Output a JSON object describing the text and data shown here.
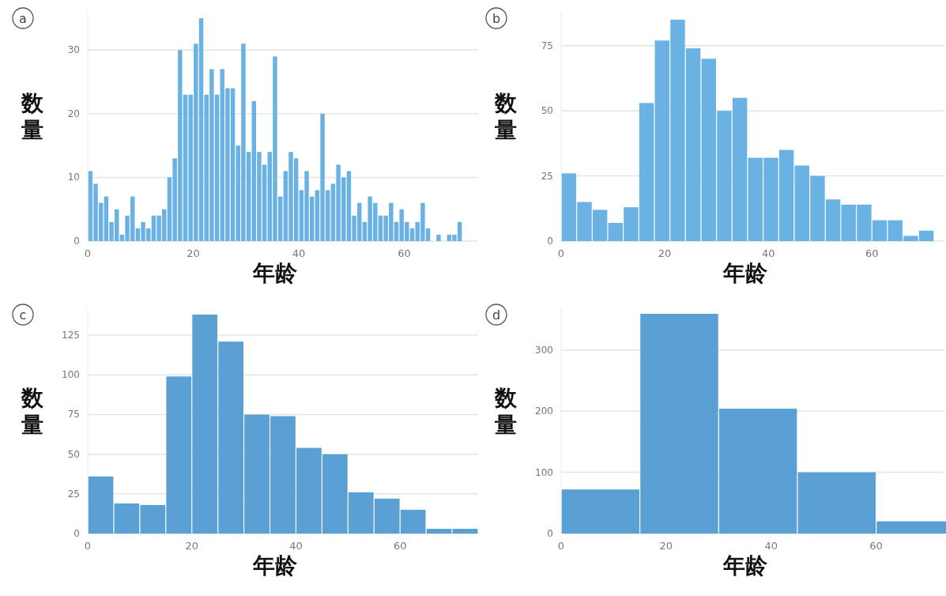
{
  "chart_data": [
    {
      "type": "histogram",
      "annotations": [
        "a"
      ],
      "xlabel": "年龄",
      "ylabel": "数量",
      "color": "#6ab2e4",
      "grid": "y",
      "bins": [
        0,
        1,
        2,
        3,
        4,
        5,
        6,
        7,
        8,
        9,
        10,
        11,
        12,
        13,
        14,
        15,
        16,
        17,
        18,
        19,
        20,
        21,
        22,
        23,
        24,
        25,
        26,
        27,
        28,
        29,
        30,
        31,
        32,
        33,
        34,
        35,
        36,
        37,
        38,
        39,
        40,
        41,
        42,
        43,
        44,
        45,
        46,
        47,
        48,
        49,
        50,
        51,
        52,
        53,
        54,
        55,
        56,
        57,
        58,
        59,
        60,
        61,
        62,
        63,
        64,
        65,
        66,
        67,
        68,
        69,
        70,
        71
      ],
      "values": [
        11,
        9,
        6,
        7,
        3,
        5,
        1,
        4,
        7,
        2,
        3,
        2,
        4,
        4,
        5,
        10,
        13,
        30,
        23,
        23,
        31,
        35,
        23,
        27,
        23,
        27,
        24,
        24,
        15,
        31,
        14,
        22,
        14,
        12,
        14,
        29,
        7,
        11,
        14,
        13,
        8,
        11,
        7,
        8,
        20,
        8,
        9,
        12,
        10,
        11,
        4,
        6,
        3,
        7,
        6,
        4,
        4,
        6,
        3,
        5,
        3,
        2,
        3,
        6,
        2,
        0,
        1,
        0,
        1,
        1,
        3
      ],
      "xlim": [
        0,
        74
      ],
      "ylim": [
        0,
        36
      ],
      "xticks": [
        0,
        20,
        40,
        60
      ],
      "yticks": [
        0,
        10,
        20,
        30
      ]
    },
    {
      "type": "histogram",
      "annotations": [
        "b"
      ],
      "xlabel": "年龄",
      "ylabel": "数量",
      "color": "#6ab2e4",
      "grid": "y",
      "bins": [
        0,
        3,
        6,
        9,
        12,
        15,
        18,
        21,
        24,
        27,
        30,
        33,
        36,
        39,
        42,
        45,
        48,
        51,
        54,
        57,
        60,
        63,
        66,
        69,
        72
      ],
      "values": [
        26,
        15,
        12,
        7,
        13,
        53,
        77,
        85,
        74,
        70,
        50,
        55,
        32,
        32,
        35,
        29,
        25,
        16,
        14,
        14,
        8,
        8,
        2,
        4
      ],
      "xlim": [
        0,
        74
      ],
      "ylim": [
        0,
        88
      ],
      "xticks": [
        0,
        20,
        40,
        60
      ],
      "yticks": [
        0,
        25,
        50,
        75
      ]
    },
    {
      "type": "histogram",
      "annotations": [
        "c"
      ],
      "xlabel": "年龄",
      "ylabel": "数量",
      "color": "#5aa0d4",
      "grid": "y",
      "bins": [
        0,
        5,
        10,
        15,
        20,
        25,
        30,
        35,
        40,
        45,
        50,
        55,
        60,
        65,
        70,
        75
      ],
      "values": [
        36,
        19,
        18,
        99,
        138,
        121,
        75,
        74,
        54,
        50,
        26,
        22,
        15,
        3,
        3
      ],
      "xlim": [
        0,
        75
      ],
      "ylim": [
        0,
        142
      ],
      "xticks": [
        0,
        20,
        40,
        60
      ],
      "yticks": [
        0,
        25,
        50,
        75,
        100,
        125
      ]
    },
    {
      "type": "histogram",
      "annotations": [
        "d"
      ],
      "xlabel": "年龄",
      "ylabel": "数量",
      "color": "#5aa0d4",
      "grid": "y",
      "bins": [
        0,
        15,
        30,
        45,
        60,
        75
      ],
      "values": [
        72,
        359,
        204,
        100,
        20
      ],
      "xlim": [
        0,
        73
      ],
      "ylim": [
        0,
        368
      ],
      "xticks": [
        0,
        20,
        40,
        60
      ],
      "yticks": [
        0,
        100,
        200,
        300
      ]
    }
  ]
}
